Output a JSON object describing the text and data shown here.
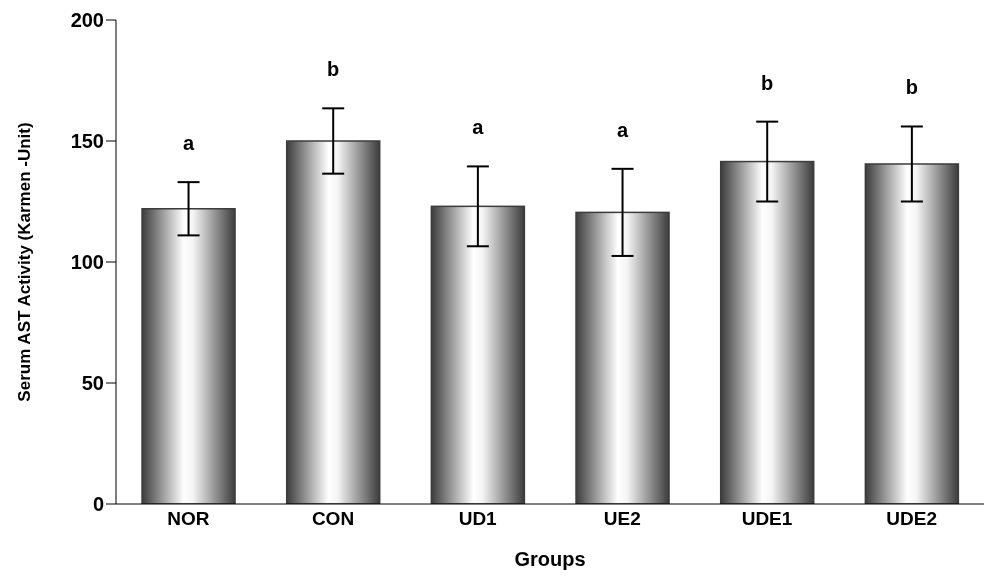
{
  "chart_data": {
    "type": "bar",
    "xlabel": "Groups",
    "ylabel": "Serum AST Activity (Karmen -Unit)",
    "categories": [
      "NOR",
      "CON",
      "UD1",
      "UE2",
      "UDE1",
      "UDE2"
    ],
    "values": [
      122,
      150,
      123,
      120.5,
      141.5,
      140.5
    ],
    "errors": [
      11,
      13.5,
      16.5,
      18,
      16.5,
      15.5
    ],
    "color": "#3c3c3c",
    "ylim": [
      0,
      200
    ],
    "yticks": [
      0,
      50,
      100,
      150,
      200
    ],
    "grid": false,
    "legend": false,
    "annotations": [
      "a",
      "b",
      "a",
      "a",
      "b",
      "b"
    ]
  }
}
